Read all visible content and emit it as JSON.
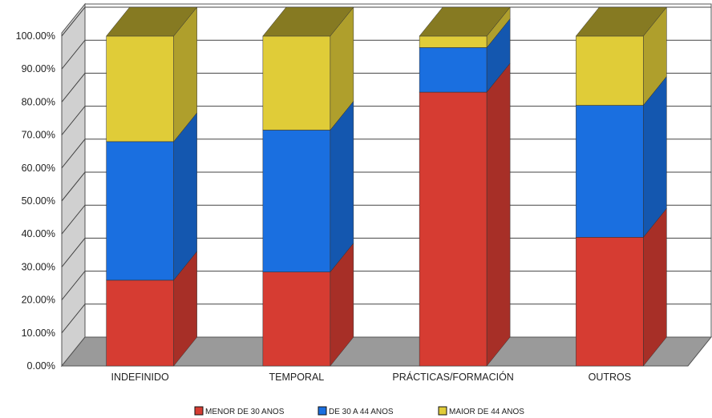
{
  "chart_data": {
    "type": "bar",
    "stacked": true,
    "normalized": true,
    "three_d": true,
    "categories": [
      "INDEFINIDO",
      "TEMPORAL",
      "PRÁCTICAS/FORMACIÓN",
      "OUTROS"
    ],
    "series": [
      {
        "name": "MENOR DE 30 ANOS",
        "color": "#d63c32",
        "values": [
          26.0,
          28.5,
          83.0,
          39.0
        ]
      },
      {
        "name": "DE 30 A 44 ANOS",
        "color": "#1a6fe0",
        "values": [
          42.0,
          43.0,
          13.5,
          40.0
        ]
      },
      {
        "name": "MAIOR DE 44 ANOS",
        "color": "#e0cc38",
        "values": [
          32.0,
          28.5,
          3.5,
          21.0
        ]
      }
    ],
    "ylim": [
      0,
      100
    ],
    "yticks": [
      "0.00%",
      "10.00%",
      "20.00%",
      "30.00%",
      "40.00%",
      "50.00%",
      "60.00%",
      "70.00%",
      "80.00%",
      "90.00%",
      "100.00%"
    ],
    "grid": true,
    "legend_position": "bottom",
    "title": "",
    "xlabel": "",
    "ylabel": ""
  }
}
